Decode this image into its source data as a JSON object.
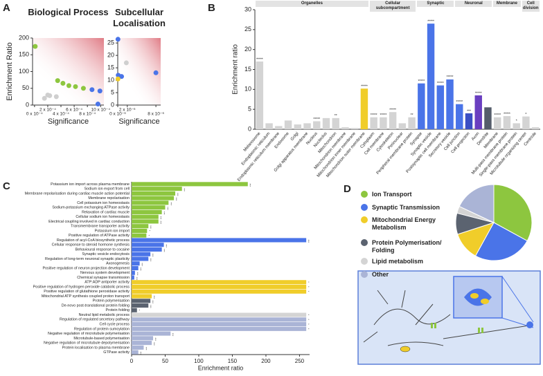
{
  "chart_data": [
    {
      "type": "scatter",
      "panel": "A",
      "title": "Biological Process",
      "x_label": "Significance",
      "y_label": "Enrichment Ratio",
      "xlim": [
        -3e-05,
        0.00105
      ],
      "ylim": [
        0,
        200
      ],
      "xticks": [
        {
          "value": 0,
          "label": "0 x 10⁻⁴"
        },
        {
          "value": 0.0002,
          "label": "2 x 10⁻⁴"
        },
        {
          "value": 0.0004,
          "label": "4 x 10⁻⁴"
        },
        {
          "value": 0.0006,
          "label": "6 x 10⁻⁴"
        },
        {
          "value": 0.0008,
          "label": "8 x 10⁻⁴"
        },
        {
          "value": 0.001,
          "label": "10 x 10⁻⁴"
        }
      ],
      "yticks": [
        0,
        50,
        100,
        150,
        200
      ],
      "series": [
        {
          "color": "#8dc63f",
          "x": [
            1e-05,
            0.00035,
            0.00043,
            0.00052,
            0.00062,
            0.00074
          ],
          "y": [
            175,
            73,
            65,
            58,
            55,
            50
          ]
        },
        {
          "color": "#cfcfcf",
          "x": [
            0.00015,
            0.0002,
            0.00023,
            0.00033
          ],
          "y": [
            20,
            30,
            28,
            25
          ]
        },
        {
          "color": "#4a74e8",
          "x": [
            0.00087,
            0.00099,
            0.00096
          ],
          "y": [
            46,
            42,
            3
          ]
        }
      ]
    },
    {
      "type": "scatter",
      "title": "Subcellular Localisation",
      "x_label": "Significance",
      "xlim": [
        0,
        9e-06
      ],
      "ylim": [
        0,
        27
      ],
      "xticks": [
        {
          "value": 0,
          "label": "0 x 10⁻⁶"
        },
        {
          "value": 2e-06,
          "label": "2 x 10⁻⁶"
        },
        {
          "value": 8e-06,
          "label": "8 x 10⁻⁶"
        }
      ],
      "yticks": [
        0,
        5,
        10,
        15,
        20,
        25
      ],
      "series": [
        {
          "color": "#4a74e8",
          "x": [
            5e-08,
            1e-07,
            8e-07,
            8e-06
          ],
          "y": [
            26.5,
            12,
            11.5,
            13
          ]
        },
        {
          "color": "#f0cd2a",
          "x": [
            5e-08
          ],
          "y": [
            10.5
          ]
        },
        {
          "color": "#cfcfcf",
          "x": [
            1.8e-06
          ],
          "y": [
            17
          ]
        }
      ]
    },
    {
      "type": "grouped_bar",
      "panel": "B",
      "y_label": "Enrichment ratio",
      "ylim": [
        0,
        30
      ],
      "yticks": [
        0,
        5,
        10,
        15,
        20,
        25,
        30
      ],
      "groups": [
        {
          "name": "Organelles",
          "categories": [
            "Melanosome",
            "Endoplasmic reticulum",
            "Endoplasmic reticulum membrane",
            "Endosome",
            "Golgi",
            "Golgi apparatus membrane",
            "Nucleus",
            "Nucleolus",
            "Mitochondrion",
            "Mitochondrion membrane",
            "Mitochondrion inner membrane",
            "Mitochondrion outer membrane"
          ],
          "values": [
            17,
            1.5,
            0.8,
            2.2,
            1.2,
            1.5,
            2,
            2.8,
            2.8,
            0.5,
            0.3,
            10.2
          ],
          "colors": [
            "#d4d4d4",
            "#d4d4d4",
            "#d4d4d4",
            "#d4d4d4",
            "#d4d4d4",
            "#d4d4d4",
            "#d4d4d4",
            "#d4d4d4",
            "#d4d4d4",
            "#d4d4d4",
            "#d4d4d4",
            "#f0cd2a"
          ],
          "stars": [
            "*****",
            null,
            null,
            null,
            null,
            null,
            "*****",
            null,
            "**",
            null,
            null,
            "*****"
          ]
        },
        {
          "name": "Cellular subcompartment",
          "categories": [
            "Cytoplasm",
            "Cell membrane",
            "Cytoskeleton",
            "Perinuclear",
            "Peripheral membrane protein"
          ],
          "values": [
            3,
            3,
            4.3,
            1.5,
            3
          ],
          "colors": [
            "#d4d4d4",
            "#d4d4d4",
            "#d4d4d4",
            "#d4d4d4",
            "#d4d4d4"
          ],
          "stars": [
            "*****",
            "*****",
            "*****",
            null,
            "**"
          ]
        },
        {
          "name": "Synaptic",
          "categories": [
            "Synapse",
            "Synaptic vesicle",
            "Postsynaptic cell membrane",
            "Secretory vesicle"
          ],
          "values": [
            11.5,
            26.5,
            11,
            12.5
          ],
          "colors": [
            "#4a74e8",
            "#4a74e8",
            "#4a74e8",
            "#4a74e8"
          ],
          "stars": [
            "*****",
            "*****",
            "*****",
            "*****"
          ]
        },
        {
          "name": "Neuronal",
          "categories": [
            "Cell junction",
            "Cell projection",
            "Axon",
            "Dendrite"
          ],
          "values": [
            6.3,
            4,
            8.5,
            5.5
          ],
          "colors": [
            "#4a74e8",
            "#3b4fc4",
            "#6a3fc0",
            "#555d6b"
          ],
          "stars": [
            "*****",
            "***",
            "*****",
            null
          ]
        },
        {
          "name": "Membrane",
          "categories": [
            "Membrane",
            "Multi-pass membrane protein",
            "Single-pass membrane protein"
          ],
          "values": [
            3,
            3.3,
            1.5
          ],
          "colors": [
            "#d4d4d4",
            "#d4d4d4",
            "#d4d4d4"
          ],
          "stars": [
            "*****",
            "*****",
            "*"
          ]
        },
        {
          "name": "Cell division",
          "categories": [
            "Microtubule organizing center",
            "Centriole"
          ],
          "values": [
            3.2,
            0.5
          ],
          "colors": [
            "#d4d4d4",
            "#d4d4d4"
          ],
          "stars": [
            "*",
            null
          ]
        }
      ]
    },
    {
      "type": "hbar",
      "panel": "C",
      "x_label": "Enrichment ratio",
      "xlim": [
        0,
        265
      ],
      "xticks": [
        0,
        50,
        100,
        150,
        200,
        250
      ],
      "groups": [
        {
          "color": "#8dc63f",
          "categories": [
            "Potassium ion import across plasma membrane",
            "Sodium ion export from cell",
            "Membrane repolarisation during cardiac muscle action potential",
            "Membrane repolarisation",
            "Cell potassium ion homeostasis",
            "Sodium-potassium exchanging ATPase activity",
            "Relaxation of cardiac muscle",
            "Cellular sodium ion homeostasis",
            "Electrical coupling involved in cardiac conduction",
            "Transmembrane transporter activity",
            "Potassium ion import",
            "Positive regulation of ATPase activity"
          ],
          "values": [
            173,
            75,
            65,
            63,
            55,
            50,
            45,
            40,
            40,
            25,
            23,
            22
          ],
          "stars": [
            "***",
            "***",
            "***",
            "***",
            "***",
            "***",
            "***",
            "***",
            "***",
            "***",
            "*",
            "*"
          ]
        },
        {
          "color": "#4a74e8",
          "categories": [
            "Regulation of acyl-CoA biosynthetic process",
            "Cellular response to steroid hormone synthesis",
            "Behavioural response to cocaine",
            "Synaptic vesicle endocytosis",
            "Regulation of long-term neuronal synaptic plasticity",
            "Axonogenesis",
            "Positive regulation of neuron projection development",
            "Nervous system development",
            "Chemical synapse transmission"
          ],
          "values": [
            260,
            48,
            45,
            28,
            25,
            12,
            10,
            5,
            4
          ],
          "stars": [
            "***",
            "***",
            "***",
            "***",
            "***",
            "***",
            "***",
            "***",
            "***"
          ]
        },
        {
          "color": "#f0cd2a",
          "categories": [
            "ATP:ADP antiporter activity",
            "Positive regulation of hydrogen peroxide catabolic process",
            "Positive regulation of glutathione peroxidase activity",
            "Mitochondrial ATP synthesis coupled proton transport"
          ],
          "values": [
            260,
            260,
            260,
            30
          ],
          "stars": [
            "*",
            "*",
            "*",
            "***"
          ]
        },
        {
          "color": "#5b6370",
          "categories": [
            "Protein polymerisation",
            "De-novo post-translational protein folding",
            "Protein folding"
          ],
          "values": [
            28,
            25,
            8
          ],
          "stars": [
            "***",
            "***",
            "*"
          ]
        },
        {
          "color": "#d4d4d4",
          "categories": [
            "Neutral lipid metabolic process"
          ],
          "values": [
            260
          ],
          "stars": [
            "*"
          ]
        },
        {
          "color": "#aab4d6",
          "categories": [
            "Regulation of regulated secretory pathway",
            "Cell cycle process",
            "Regulation of protein sumoylation",
            "Negative regulation of microtubule polymerisation",
            "Microtubule-based polymerisation",
            "Negative regulation of microtubule depolymerisation",
            "Protein localisation to plasma membrane",
            "GTPase activity"
          ],
          "values": [
            260,
            260,
            260,
            58,
            32,
            30,
            18,
            10
          ],
          "stars": [
            "*",
            "*",
            "*",
            "***",
            "***",
            "***",
            "***",
            "***"
          ]
        }
      ]
    },
    {
      "type": "pie",
      "panel": "D",
      "categories": [
        "Ion Transport",
        "Synaptic Transmission",
        "Mitochondrial Energy Metabolism",
        "Protein Polymerisation/ Folding",
        "Lipid metabolism",
        "Other"
      ],
      "values": [
        33,
        25,
        12,
        9,
        3,
        18
      ],
      "colors": [
        "#8dc63f",
        "#4a74e8",
        "#f0cd2a",
        "#5b6370",
        "#d4d4d4",
        "#aab4d6"
      ]
    }
  ]
}
